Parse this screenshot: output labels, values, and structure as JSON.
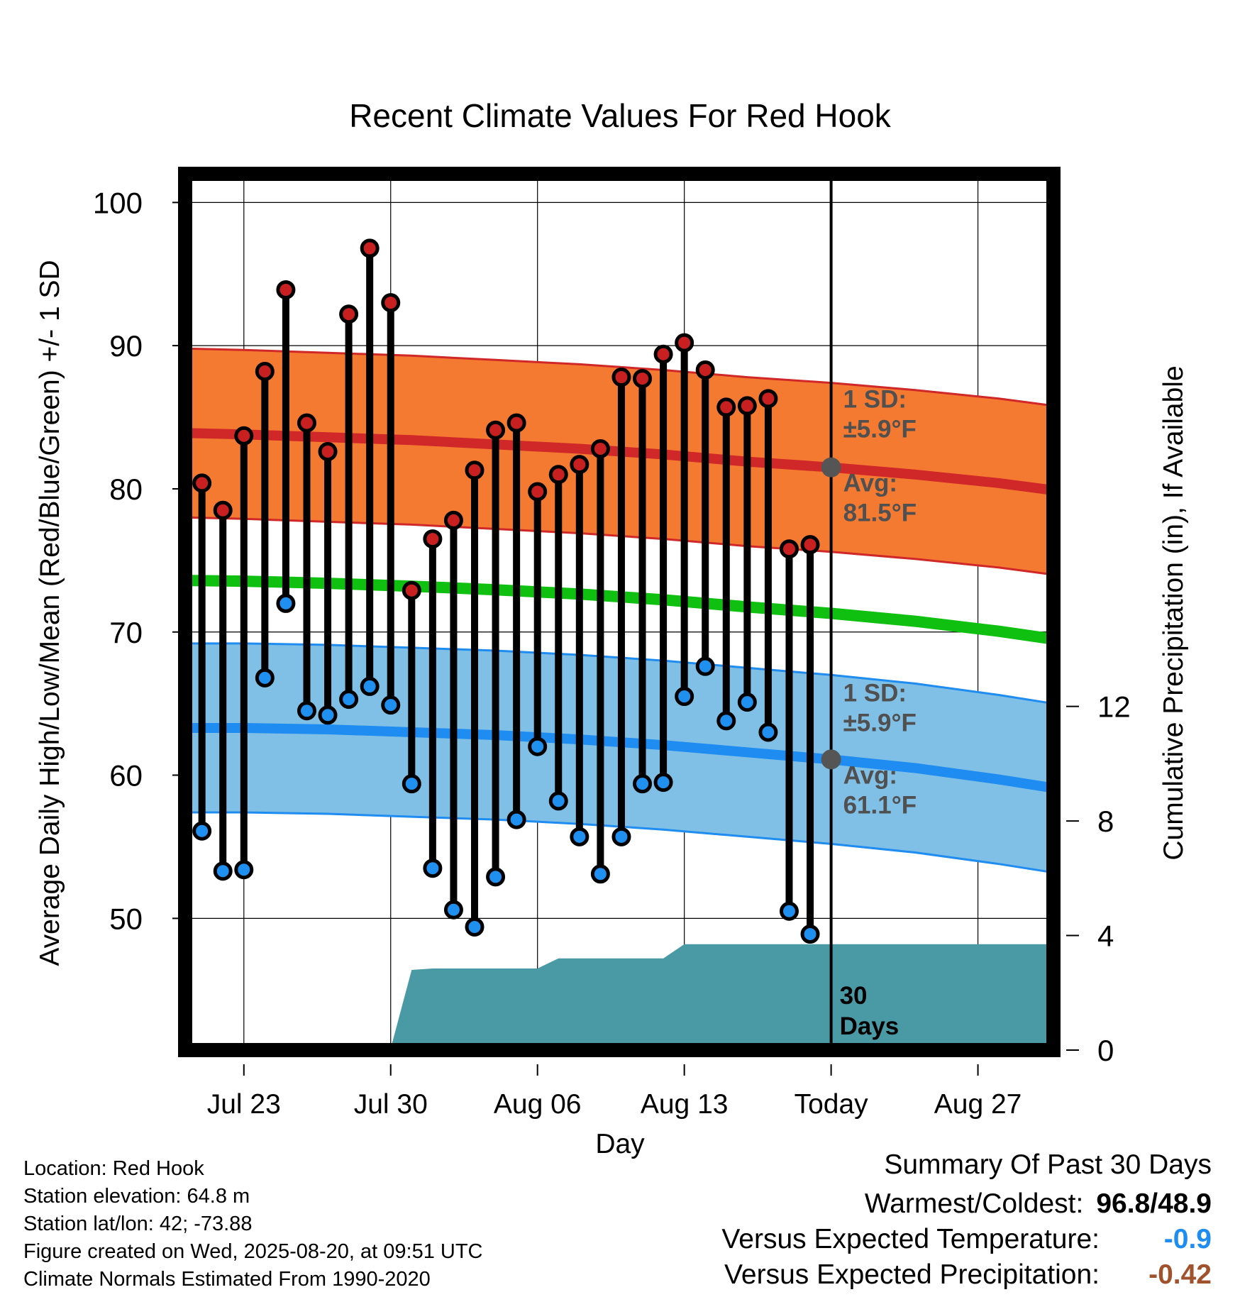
{
  "chart_data": {
    "type": "line",
    "title": "Recent Climate Values For Red Hook",
    "xlabel": "Day",
    "ylabel": "Average Daily High/Low/Mean (Red/Blue/Green) +/- 1 SD",
    "y2label": "Cumulative Precipitation (in), If Available",
    "ylim": [
      40.8,
      102
    ],
    "y2lim": [
      0,
      30.6
    ],
    "xlim": [
      -0.8,
      40.6
    ],
    "yticks": [
      "100",
      "90",
      "80",
      "70",
      "60",
      "50"
    ],
    "y2ticks": [
      "12",
      "8",
      "4",
      "0"
    ],
    "xtick_labels": [
      "Jul 23",
      "Jul 30",
      "Aug 06",
      "Aug 13",
      "Today",
      "Aug 27"
    ],
    "xtick_days": [
      2,
      9,
      16,
      23,
      30,
      37
    ],
    "grid": true,
    "days_label": "30\nDays",
    "daily_highs": [
      80.4,
      78.5,
      83.7,
      88.2,
      93.9,
      84.6,
      82.6,
      92.2,
      96.8,
      93.0,
      72.9,
      76.5,
      77.8,
      81.3,
      84.1,
      84.6,
      79.8,
      81.0,
      81.7,
      82.8,
      87.8,
      87.7,
      89.4,
      90.2,
      88.3,
      85.7,
      85.8,
      86.3,
      75.8,
      76.1
    ],
    "daily_lows": [
      56.1,
      53.3,
      53.4,
      66.8,
      72.0,
      64.5,
      64.2,
      65.3,
      66.2,
      64.9,
      59.4,
      53.5,
      50.6,
      49.4,
      52.9,
      56.9,
      62.0,
      58.2,
      55.7,
      53.1,
      55.7,
      59.4,
      59.5,
      65.5,
      67.6,
      63.8,
      65.1,
      63.0,
      50.5,
      48.9
    ],
    "normal_high": {
      "x": [
        -0.8,
        2,
        6,
        10,
        14,
        18,
        22,
        26,
        30,
        34,
        38,
        40.6
      ],
      "avg": [
        83.9,
        83.8,
        83.6,
        83.4,
        83.1,
        82.8,
        82.4,
        81.9,
        81.5,
        81.0,
        80.4,
        79.9
      ]
    },
    "normal_low": {
      "x": [
        -0.8,
        2,
        6,
        10,
        14,
        18,
        22,
        26,
        30,
        34,
        38,
        40.6
      ],
      "avg": [
        63.3,
        63.3,
        63.2,
        63.0,
        62.8,
        62.5,
        62.1,
        61.6,
        61.1,
        60.5,
        59.7,
        59.1
      ]
    },
    "normal_mean": {
      "x": [
        -0.8,
        2,
        6,
        10,
        14,
        18,
        22,
        26,
        30,
        34,
        38,
        40.6
      ],
      "avg": [
        73.6,
        73.55,
        73.4,
        73.2,
        72.95,
        72.65,
        72.25,
        71.75,
        71.3,
        70.75,
        70.05,
        69.5
      ]
    },
    "sd": 5.9,
    "precip_cumulative": {
      "x": [
        -0.8,
        6,
        9,
        10,
        11,
        16,
        17,
        22,
        23,
        40.6
      ],
      "y": [
        0,
        0.05,
        0.05,
        2.8,
        2.85,
        2.85,
        3.2,
        3.2,
        3.7,
        3.7
      ]
    },
    "annotations": {
      "high_sd_label": "1 SD:",
      "high_sd_value": "±5.9°F",
      "high_avg_label": "Avg:",
      "high_avg_value": "81.5°F",
      "low_sd_label": "1 SD:",
      "low_sd_value": "±5.9°F",
      "low_avg_label": "Avg:",
      "low_avg_value": "61.1°F"
    },
    "colors": {
      "high_band": "#f47a32",
      "high_line": "#d02828",
      "low_band": "#80c0e6",
      "low_line": "#1e8cf0",
      "mean_line": "#10c010",
      "precip": "#4a9aa6",
      "high_dot": "#c82020",
      "low_dot": "#2090f0",
      "annotation_text": "#505050"
    }
  },
  "info": {
    "location": "Location: Red Hook",
    "elevation": "Station elevation: 64.8 m",
    "latlon": "Station lat/lon: 42; -73.88",
    "created": "Figure created on Wed, 2025-08-20, at 09:51 UTC",
    "normals": "Climate Normals Estimated From 1990-2020"
  },
  "summary": {
    "title": "Summary Of Past 30 Days",
    "warm_cold_label": "Warmest/Coldest:",
    "warm_cold_value": "96.8/48.9",
    "temp_label": "Versus Expected Temperature:",
    "temp_value": "-0.9",
    "temp_color": "#1e8cf0",
    "precip_label": "Versus Expected Precipitation:",
    "precip_value": "-0.42",
    "precip_color": "#a0522d"
  }
}
